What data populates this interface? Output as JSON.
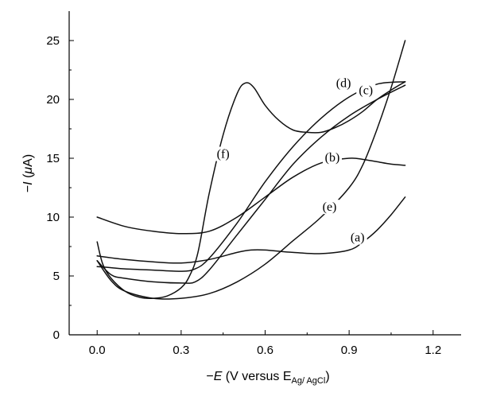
{
  "chart_data": {
    "type": "line",
    "xlim": [
      -0.1,
      1.3
    ],
    "ylim": [
      0,
      27.5
    ],
    "x_ticks": [
      0.0,
      0.3,
      0.6,
      0.9,
      1.2
    ],
    "x_tick_labels": [
      "0.0",
      "0.3",
      "0.6",
      "0.9",
      "1.2"
    ],
    "y_ticks": [
      0,
      5,
      10,
      15,
      20,
      25
    ],
    "y_tick_labels": [
      "0",
      "5",
      "10",
      "15",
      "20",
      "25"
    ],
    "xlabel": {
      "prefix": "−",
      "italic": "E",
      "middle": " (V versus E",
      "subscript": "Ag/ AgCl",
      "suffix": ")"
    },
    "ylabel": {
      "prefix": "−",
      "italic": "I",
      "middle": " (",
      "greek": "μ",
      "suffix": "A)"
    },
    "grid": false,
    "series": [
      {
        "name": "(a)",
        "x": [
          0.0,
          0.1,
          0.2,
          0.3,
          0.4,
          0.5,
          0.55,
          0.6,
          0.7,
          0.8,
          0.9,
          0.95,
          1.0,
          1.05,
          1.1
        ],
        "y": [
          6.7,
          6.4,
          6.2,
          6.1,
          6.4,
          7.0,
          7.2,
          7.2,
          7.0,
          6.9,
          7.2,
          7.9,
          8.9,
          10.2,
          11.7
        ]
      },
      {
        "name": "(b)",
        "x": [
          0.0,
          0.1,
          0.2,
          0.3,
          0.4,
          0.5,
          0.6,
          0.7,
          0.8,
          0.9,
          0.95,
          1.0,
          1.05,
          1.1
        ],
        "y": [
          10.0,
          9.2,
          8.8,
          8.6,
          8.8,
          10.0,
          11.7,
          13.4,
          14.6,
          15.0,
          14.9,
          14.7,
          14.5,
          14.4
        ]
      },
      {
        "name": "(c)",
        "x": [
          0.0,
          0.05,
          0.1,
          0.2,
          0.3,
          0.35,
          0.4,
          0.5,
          0.6,
          0.7,
          0.8,
          0.9,
          1.0,
          1.1
        ],
        "y": [
          6.3,
          5.1,
          4.8,
          4.5,
          4.4,
          4.5,
          5.5,
          8.5,
          11.5,
          14.5,
          16.8,
          18.6,
          20.0,
          21.2
        ]
      },
      {
        "name": "(d)",
        "x": [
          0.0,
          0.05,
          0.1,
          0.2,
          0.3,
          0.35,
          0.4,
          0.5,
          0.6,
          0.7,
          0.8,
          0.9,
          1.0,
          1.1
        ],
        "y": [
          5.8,
          5.7,
          5.6,
          5.5,
          5.4,
          5.6,
          6.5,
          9.5,
          13.0,
          16.0,
          18.4,
          20.2,
          21.3,
          21.5
        ]
      },
      {
        "name": "(e)",
        "x": [
          0.0,
          0.05,
          0.1,
          0.2,
          0.3,
          0.4,
          0.5,
          0.6,
          0.7,
          0.8,
          0.9,
          0.95,
          1.0,
          1.05,
          1.1
        ],
        "y": [
          6.3,
          4.6,
          3.7,
          3.1,
          3.1,
          3.5,
          4.5,
          6.0,
          8.0,
          10.0,
          12.5,
          14.5,
          17.5,
          21.0,
          25.0
        ]
      },
      {
        "name": "(f)",
        "x": [
          0.0,
          0.02,
          0.05,
          0.1,
          0.15,
          0.2,
          0.25,
          0.3,
          0.33,
          0.36,
          0.4,
          0.45,
          0.5,
          0.53,
          0.56,
          0.6,
          0.65,
          0.7,
          0.75,
          0.8,
          0.85,
          0.9,
          0.95,
          1.0,
          1.05,
          1.1
        ],
        "y": [
          7.9,
          6.0,
          4.8,
          3.7,
          3.2,
          3.1,
          3.3,
          4.0,
          5.0,
          7.0,
          12.0,
          17.0,
          20.5,
          21.4,
          21.0,
          19.5,
          18.2,
          17.4,
          17.2,
          17.2,
          17.6,
          18.2,
          19.0,
          20.0,
          20.8,
          21.5
        ]
      }
    ],
    "annotations": [
      {
        "text": "(a)",
        "x": 0.93,
        "y": 8.0
      },
      {
        "text": "(b)",
        "x": 0.84,
        "y": 14.8
      },
      {
        "text": "(c)",
        "x": 0.96,
        "y": 20.5
      },
      {
        "text": "(d)",
        "x": 0.88,
        "y": 21.1
      },
      {
        "text": "(e)",
        "x": 0.83,
        "y": 10.6
      },
      {
        "text": "(f)",
        "x": 0.45,
        "y": 15.1
      }
    ]
  }
}
